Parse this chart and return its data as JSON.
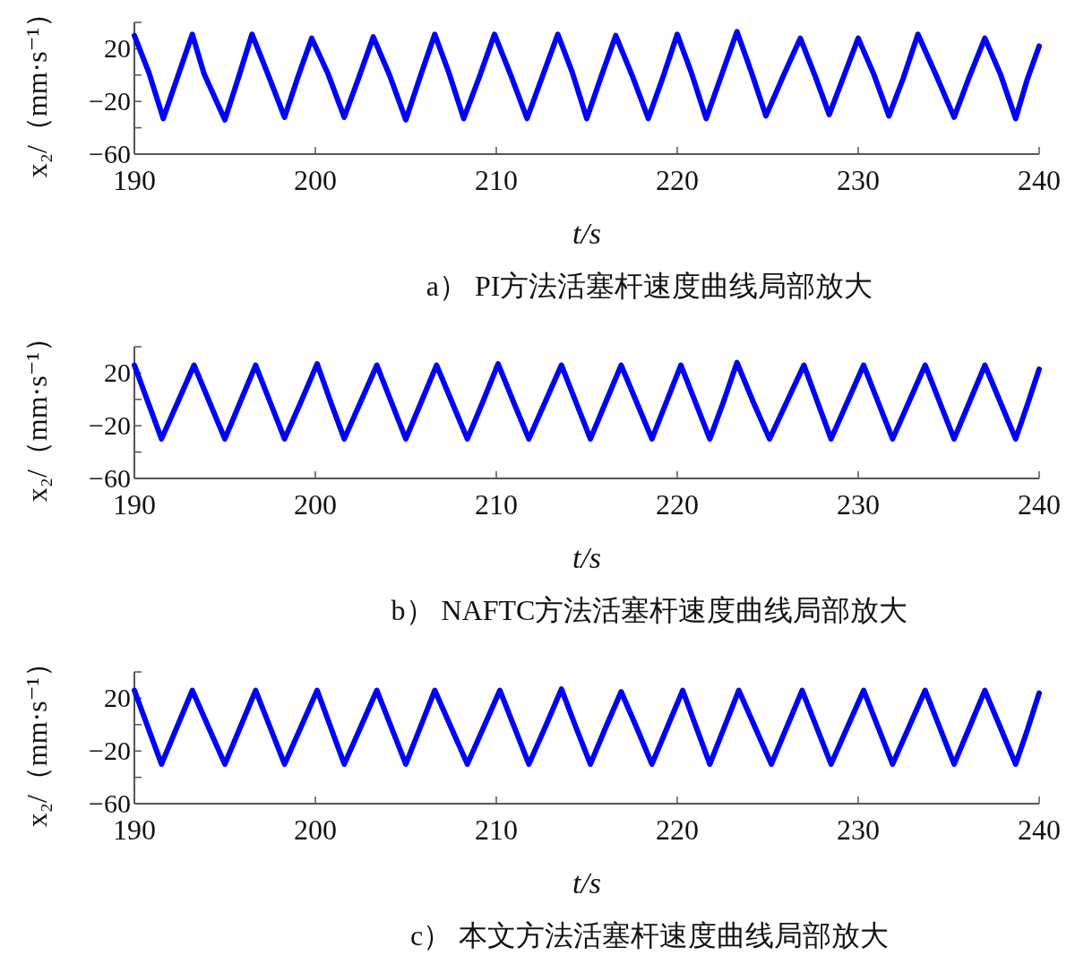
{
  "chart_data": [
    {
      "type": "line",
      "title": "a） PI方法活塞杆速度曲线局部放大",
      "xlabel": "t/s",
      "ylabel": "x₂/（mm·s⁻¹）",
      "xlim": [
        190,
        240
      ],
      "xticks": [
        190,
        200,
        210,
        220,
        230,
        240
      ],
      "ylim": [
        -60,
        40
      ],
      "yticks": [
        -60,
        {
          "value": -40,
          "label": null
        },
        -20,
        {
          "value": 0,
          "label": null
        },
        20,
        {
          "value": 40,
          "label": null
        }
      ],
      "series": [
        {
          "color": "#0000ff",
          "x": [
            190,
            190.8,
            191.6,
            192.4,
            193.2,
            193.85,
            195.0,
            195.75,
            196.5,
            197.4,
            198.3,
            199.05,
            199.8,
            200.7,
            201.6,
            202.4,
            203.2,
            204.1,
            205.0,
            205.8,
            206.6,
            207.4,
            208.2,
            209.05,
            209.9,
            210.8,
            211.7,
            212.55,
            213.4,
            214.2,
            215.0,
            215.8,
            216.6,
            217.5,
            218.4,
            219.2,
            220.0,
            220.8,
            221.6,
            222.45,
            223.3,
            224.1,
            224.9,
            225.85,
            226.8,
            227.6,
            228.4,
            229.2,
            230.0,
            230.85,
            231.7,
            232.5,
            233.3,
            234.3,
            235.3,
            236.15,
            237.0,
            237.85,
            238.7,
            239.35,
            240
          ],
          "values": [
            30,
            2,
            -33,
            -1,
            31,
            1,
            -34,
            -2,
            31,
            0,
            -32,
            -1,
            28,
            1,
            -32,
            -2,
            29,
            0,
            -34,
            -1,
            31,
            1,
            -33,
            -2,
            31,
            0,
            -33,
            -1,
            31,
            2,
            -33,
            -1,
            30,
            0,
            -33,
            -2,
            31,
            1,
            -33,
            0,
            33,
            2,
            -31,
            -1,
            28,
            0,
            -30,
            -1,
            28,
            1,
            -31,
            -2,
            31,
            0,
            -32,
            -1,
            28,
            1,
            -33,
            -3,
            22
          ]
        }
      ]
    },
    {
      "type": "line",
      "title": "b） NAFTC方法活塞杆速度曲线局部放大",
      "xlabel": "t/s",
      "ylabel": "x₂/（mm·s⁻¹）",
      "xlim": [
        190,
        240
      ],
      "xticks": [
        190,
        200,
        210,
        220,
        230,
        240
      ],
      "ylim": [
        -60,
        40
      ],
      "yticks": [
        -60,
        {
          "value": -40,
          "label": null
        },
        -20,
        {
          "value": 0,
          "label": null
        },
        20,
        {
          "value": 40,
          "label": null
        }
      ],
      "series": [
        {
          "color": "#0000ff",
          "x": [
            190,
            190.75,
            191.5,
            192.4,
            193.3,
            194.15,
            195.0,
            195.85,
            196.7,
            197.5,
            198.3,
            199.2,
            200.1,
            200.85,
            201.6,
            202.5,
            203.4,
            204.2,
            205.0,
            205.85,
            206.7,
            207.55,
            208.4,
            209.25,
            210.1,
            210.95,
            211.8,
            212.7,
            213.6,
            214.4,
            215.2,
            216.05,
            216.9,
            217.75,
            218.6,
            219.4,
            220.2,
            221.0,
            221.8,
            222.55,
            223.3,
            224.2,
            225.1,
            226.05,
            227.0,
            227.75,
            228.5,
            229.4,
            230.3,
            231.1,
            231.9,
            232.8,
            233.7,
            234.5,
            235.3,
            236.15,
            237.0,
            237.85,
            238.7,
            239.35,
            240
          ],
          "values": [
            26,
            -2,
            -30,
            -2,
            26,
            -2,
            -30,
            -2,
            26,
            -2,
            -30,
            -2,
            27,
            -2,
            -30,
            -2,
            26,
            -2,
            -30,
            -2,
            26,
            -2,
            -30,
            -2,
            27,
            -2,
            -30,
            -2,
            26,
            -2,
            -30,
            -2,
            26,
            -2,
            -30,
            -2,
            26,
            -2,
            -30,
            -2,
            28,
            -2,
            -30,
            -2,
            26,
            -2,
            -30,
            -2,
            26,
            -2,
            -30,
            -2,
            26,
            -2,
            -30,
            -2,
            26,
            -2,
            -30,
            -4,
            23
          ]
        }
      ]
    },
    {
      "type": "line",
      "title": "c） 本文方法活塞杆速度曲线局部放大",
      "xlabel": "t/s",
      "ylabel": "x₂/（mm·s⁻¹）",
      "xlim": [
        190,
        240
      ],
      "xticks": [
        190,
        200,
        210,
        220,
        230,
        240
      ],
      "ylim": [
        -60,
        40
      ],
      "yticks": [
        -60,
        {
          "value": -40,
          "label": null
        },
        -20,
        {
          "value": 0,
          "label": null
        },
        20,
        {
          "value": 40,
          "label": null
        }
      ],
      "series": [
        {
          "color": "#0000ff",
          "x": [
            190,
            190.75,
            191.5,
            192.35,
            193.2,
            194.1,
            195.0,
            195.85,
            196.7,
            197.5,
            198.3,
            199.2,
            200.1,
            200.85,
            201.6,
            202.5,
            203.4,
            204.2,
            205.0,
            205.8,
            206.6,
            207.5,
            208.4,
            209.3,
            210.2,
            211.0,
            211.8,
            212.7,
            213.6,
            214.4,
            215.2,
            216.05,
            216.9,
            217.75,
            218.6,
            219.45,
            220.3,
            221.05,
            221.8,
            222.6,
            223.4,
            224.3,
            225.2,
            226.05,
            226.9,
            227.7,
            228.5,
            229.4,
            230.3,
            231.1,
            231.9,
            232.8,
            233.7,
            234.5,
            235.3,
            236.15,
            237.0,
            237.85,
            238.7,
            239.35,
            240
          ],
          "values": [
            26,
            -2,
            -30,
            -2,
            26,
            -2,
            -30,
            -2,
            26,
            -2,
            -30,
            -2,
            26,
            -2,
            -30,
            -2,
            26,
            -2,
            -30,
            -2,
            26,
            -2,
            -30,
            -2,
            26,
            -2,
            -30,
            -2,
            27,
            -2,
            -30,
            -2,
            25,
            -2,
            -30,
            -2,
            26,
            -2,
            -30,
            -2,
            26,
            -2,
            -30,
            -2,
            26,
            -2,
            -30,
            -2,
            26,
            -2,
            -30,
            -2,
            26,
            -2,
            -30,
            -2,
            26,
            -2,
            -30,
            -4,
            24
          ]
        }
      ]
    }
  ]
}
